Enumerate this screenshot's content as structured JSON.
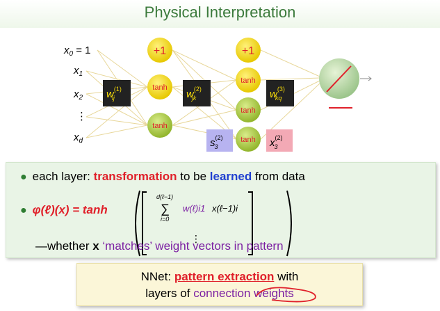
{
  "slide": {
    "title": "Physical Interpretation",
    "network": {
      "inputs": [
        "x0 = 1",
        "x1",
        "x2",
        "⋮",
        "xd"
      ],
      "bias_label": "+1",
      "neuron_label": "tanh",
      "weights": [
        "w(1)ij",
        "w(2)jk",
        "w(3)kq"
      ],
      "s_label": "s(2)3",
      "x_label": "x(2)3"
    },
    "bullets": {
      "b1_a": "each layer: ",
      "b1_b": "transformation",
      "b1_c": " to be ",
      "b1_d": "learned",
      "b1_e": " from data",
      "b2_phi": "φ(ℓ)(x) = tanh",
      "b2_sum": "d(ℓ−1)",
      "b2_sum_from": "i=0",
      "b2_weight": "w(ℓ)i1",
      "b2_x": "x(ℓ−1)i",
      "b2_dots": "⋮",
      "b3_a": "—whether ",
      "b3_b": "x",
      "b3_c": " ‘matches’ weight vectors in pattern"
    },
    "summary": {
      "l1_a": "NNet: ",
      "l1_b": "pattern extraction",
      "l1_c": " with",
      "l2_a": "layers of ",
      "l2_b": "connection weights"
    },
    "colors": {
      "accent_red": "#e0202a",
      "accent_blue": "#1f3fd0",
      "purple": "#7b1fa2",
      "neuron_yellow": "#f5d90a",
      "neuron_green": "#a8c83a"
    }
  }
}
